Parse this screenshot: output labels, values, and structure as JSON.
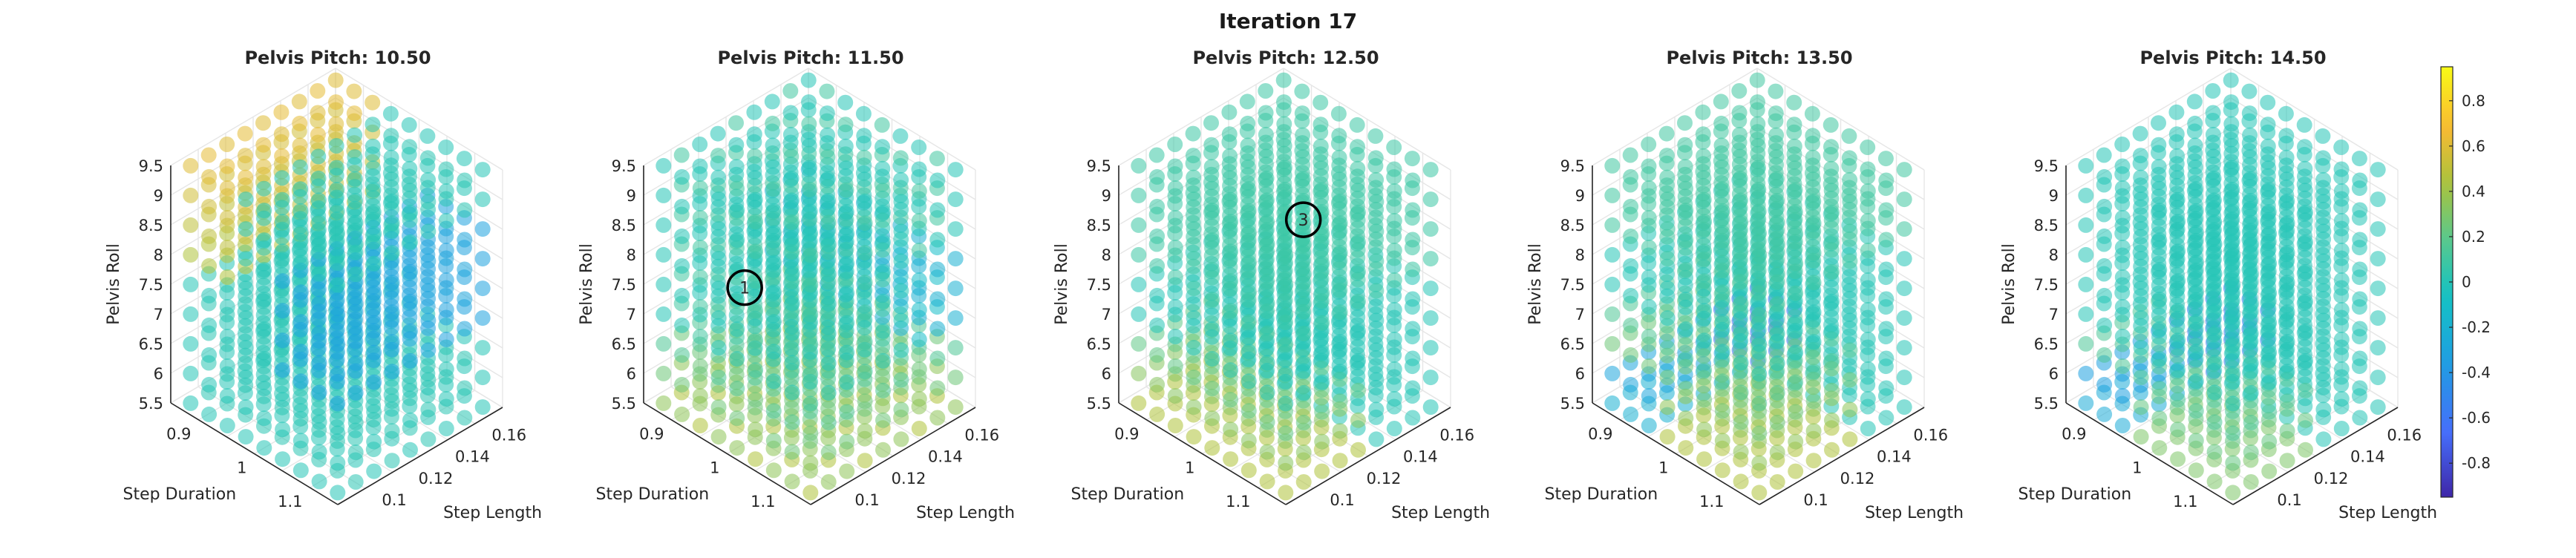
{
  "figure_title": "Iteration 17",
  "chart_data": [
    {
      "type": "scatter",
      "title": "Pelvis Pitch: 10.50",
      "xlabel": "Step Duration",
      "ylabel": "Step Length",
      "zlabel": "Pelvis Roll",
      "x_ticks": [
        "1.1",
        "1",
        "0.9"
      ],
      "y_ticks": [
        "0.1",
        "0.12",
        "0.14",
        "0.16"
      ],
      "z_ticks": [
        "5.5",
        "6",
        "6.5",
        "7",
        "7.5",
        "8",
        "8.5",
        "9",
        "9.5"
      ],
      "ranges": {
        "step_duration": [
          0.85,
          1.15
        ],
        "step_length": [
          0.08,
          0.17
        ],
        "pelvis_roll": [
          5.5,
          9.5
        ]
      },
      "grid": "on",
      "trend": "high posterior values near long step duration, negative values along short step duration / mid roll",
      "marker": null
    },
    {
      "type": "scatter",
      "title": "Pelvis Pitch: 11.50",
      "xlabel": "Step Duration",
      "ylabel": "Step Length",
      "zlabel": "Pelvis Roll",
      "x_ticks": [
        "1.1",
        "1",
        "0.9"
      ],
      "y_ticks": [
        "0.1",
        "0.12",
        "0.14",
        "0.16"
      ],
      "z_ticks": [
        "5.5",
        "6",
        "6.5",
        "7",
        "7.5",
        "8",
        "8.5",
        "9",
        "9.5"
      ],
      "ranges": {
        "step_duration": [
          0.85,
          1.15
        ],
        "step_length": [
          0.08,
          0.17
        ],
        "pelvis_roll": [
          5.5,
          9.5
        ]
      },
      "grid": "on",
      "trend": "mostly near zero with a positive band toward low roll",
      "marker": {
        "label": "1",
        "step_duration": 0.9,
        "step_length": 0.12,
        "pelvis_roll": 7.0
      }
    },
    {
      "type": "scatter",
      "title": "Pelvis Pitch: 12.50",
      "xlabel": "Step Duration",
      "ylabel": "Step Length",
      "zlabel": "Pelvis Roll",
      "x_ticks": [
        "1.1",
        "1",
        "0.9"
      ],
      "y_ticks": [
        "0.1",
        "0.12",
        "0.14",
        "0.16"
      ],
      "z_ticks": [
        "5.5",
        "6",
        "6.5",
        "7",
        "7.5",
        "8",
        "8.5",
        "9",
        "9.5"
      ],
      "ranges": {
        "step_duration": [
          0.85,
          1.15
        ],
        "step_length": [
          0.08,
          0.17
        ],
        "pelvis_roll": [
          5.5,
          9.5
        ]
      },
      "grid": "on",
      "trend": "positive values at low pelvis roll and short step duration",
      "marker": {
        "label": "3",
        "step_duration": 1.05,
        "step_length": 0.12,
        "pelvis_roll": 9.0
      }
    },
    {
      "type": "scatter",
      "title": "Pelvis Pitch: 13.50",
      "xlabel": "Step Duration",
      "ylabel": "Step Length",
      "zlabel": "Pelvis Roll",
      "x_ticks": [
        "1.1",
        "1",
        "0.9"
      ],
      "y_ticks": [
        "0.1",
        "0.12",
        "0.14",
        "0.16"
      ],
      "z_ticks": [
        "5.5",
        "6",
        "6.5",
        "7",
        "7.5",
        "8",
        "8.5",
        "9",
        "9.5"
      ],
      "ranges": {
        "step_duration": [
          0.85,
          1.15
        ],
        "step_length": [
          0.08,
          0.17
        ],
        "pelvis_roll": [
          5.5,
          9.5
        ]
      },
      "grid": "on",
      "trend": "positive band at low roll, negative values at long step duration / low roll",
      "marker": null
    },
    {
      "type": "scatter",
      "title": "Pelvis Pitch: 14.50",
      "xlabel": "Step Duration",
      "ylabel": "Step Length",
      "zlabel": "Pelvis Roll",
      "x_ticks": [
        "1.1",
        "1",
        "0.9"
      ],
      "y_ticks": [
        "0.1",
        "0.12",
        "0.14",
        "0.16"
      ],
      "z_ticks": [
        "5.5",
        "6",
        "6.5",
        "7",
        "7.5",
        "8",
        "8.5",
        "9",
        "9.5"
      ],
      "ranges": {
        "step_duration": [
          0.85,
          1.15
        ],
        "step_length": [
          0.08,
          0.17
        ],
        "pelvis_roll": [
          5.5,
          9.5
        ]
      },
      "grid": "on",
      "trend": "mostly near zero, negative values at long step duration / low roll",
      "marker": null
    }
  ],
  "colorbar": {
    "colormap": "parula",
    "range": [
      -0.95,
      0.95
    ],
    "tick_values": [
      0.8,
      0.6,
      0.4,
      0.2,
      0,
      -0.2,
      -0.4,
      -0.6,
      -0.8
    ],
    "tick_labels": [
      "0.8",
      "0.6",
      "0.4",
      "0.2",
      "0",
      "-0.2",
      "-0.4",
      "-0.6",
      "-0.8"
    ]
  }
}
